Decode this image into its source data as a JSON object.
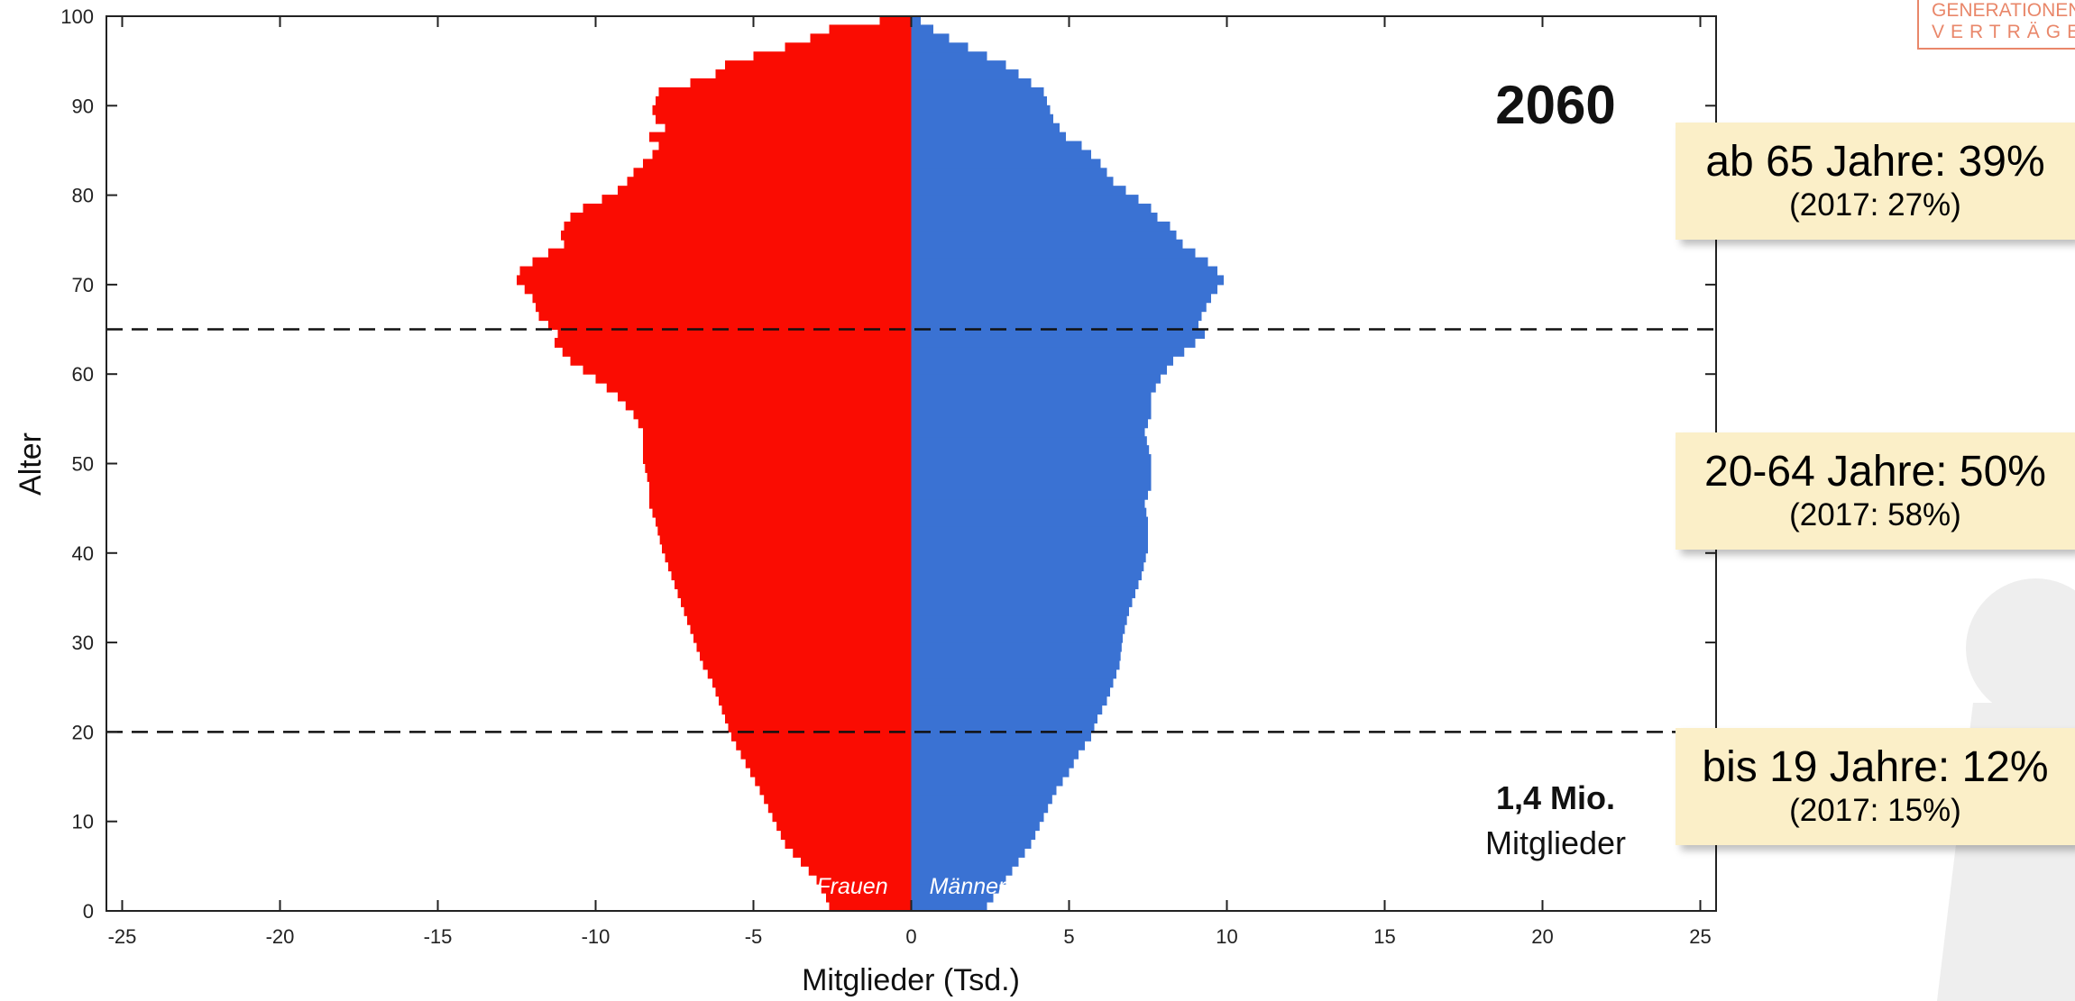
{
  "chart_data": {
    "type": "bar",
    "orientation": "horizontal",
    "subtype": "population-pyramid",
    "year_label": "2060",
    "xlabel": "Mitglieder (Tsd.)",
    "ylabel": "Alter",
    "xlim": [
      -25.5,
      25.5
    ],
    "ylim": [
      0,
      100
    ],
    "xticks": [
      -25,
      -20,
      -15,
      -10,
      -5,
      0,
      5,
      10,
      15,
      20,
      25
    ],
    "yticks": [
      0,
      10,
      20,
      30,
      40,
      50,
      60,
      70,
      80,
      90,
      100
    ],
    "grid": false,
    "reference_lines": [
      20,
      65
    ],
    "total": {
      "value": "1,4 Mio.",
      "label": "Mitglieder"
    },
    "series": [
      {
        "name": "Frauen",
        "color": "#fa0c02",
        "ages": [
          0,
          1,
          3,
          5,
          7,
          10,
          13,
          15,
          17,
          19,
          21,
          23,
          25,
          27,
          30,
          33,
          35,
          37,
          40,
          43,
          45,
          47,
          50,
          53,
          55,
          57,
          59,
          61,
          63,
          64,
          65,
          66,
          68,
          70,
          71,
          72,
          73,
          74,
          75,
          76,
          77,
          78,
          79,
          80,
          81,
          82,
          83,
          84,
          85,
          86,
          87,
          88,
          89,
          90,
          91,
          92,
          93,
          94,
          95,
          96,
          97,
          98,
          99
        ],
        "values": [
          -2.6,
          -2.7,
          -3.0,
          -3.5,
          -4.0,
          -4.4,
          -4.8,
          -5.1,
          -5.4,
          -5.7,
          -5.9,
          -6.1,
          -6.3,
          -6.6,
          -6.9,
          -7.2,
          -7.4,
          -7.6,
          -7.9,
          -8.1,
          -8.3,
          -8.3,
          -8.5,
          -8.5,
          -8.8,
          -9.3,
          -10.0,
          -10.8,
          -11.3,
          -11.2,
          -11.5,
          -11.8,
          -12.0,
          -12.5,
          -12.4,
          -12.0,
          -11.5,
          -11.0,
          -11.1,
          -11.0,
          -10.8,
          -10.4,
          -9.8,
          -9.3,
          -9.0,
          -8.8,
          -8.5,
          -8.2,
          -8.0,
          -8.3,
          -7.8,
          -8.1,
          -8.2,
          -8.1,
          -8.0,
          -7.0,
          -6.2,
          -5.9,
          -5.0,
          -4.0,
          -3.2,
          -2.6,
          -1.0
        ]
      },
      {
        "name": "Männer",
        "color": "#3a72d3",
        "ages": [
          0,
          1,
          3,
          5,
          7,
          10,
          13,
          15,
          17,
          19,
          21,
          23,
          25,
          27,
          30,
          33,
          35,
          37,
          40,
          43,
          45,
          47,
          50,
          53,
          55,
          57,
          59,
          61,
          63,
          64,
          65,
          66,
          68,
          70,
          71,
          72,
          73,
          74,
          75,
          76,
          77,
          78,
          79,
          80,
          81,
          82,
          83,
          84,
          85,
          86,
          87,
          88,
          89,
          90,
          91,
          92,
          93,
          94,
          95,
          96,
          97,
          98,
          99
        ],
        "values": [
          2.4,
          2.6,
          3.0,
          3.4,
          3.8,
          4.2,
          4.6,
          5.0,
          5.3,
          5.7,
          5.9,
          6.2,
          6.4,
          6.6,
          6.7,
          6.9,
          7.1,
          7.3,
          7.5,
          7.5,
          7.4,
          7.6,
          7.6,
          7.4,
          7.6,
          7.6,
          7.9,
          8.3,
          9.0,
          9.3,
          9.1,
          9.2,
          9.5,
          9.9,
          9.7,
          9.4,
          9.0,
          8.6,
          8.4,
          8.2,
          7.8,
          7.6,
          7.2,
          6.8,
          6.4,
          6.2,
          6.0,
          5.7,
          5.4,
          4.9,
          4.7,
          4.5,
          4.4,
          4.3,
          4.2,
          3.8,
          3.4,
          3.0,
          2.4,
          1.8,
          1.2,
          0.7,
          0.3
        ]
      }
    ]
  },
  "callouts": [
    {
      "main": "ab 65 Jahre: 39%",
      "sub": "(2017: 27%)"
    },
    {
      "main": "20-64 Jahre: 50%",
      "sub": "(2017: 58%)"
    },
    {
      "main": "bis 19 Jahre: 12%",
      "sub": "(2017: 15%)"
    }
  ],
  "logo": {
    "line1": "GENERATIONEN",
    "line2": "VERTRÄGE"
  }
}
